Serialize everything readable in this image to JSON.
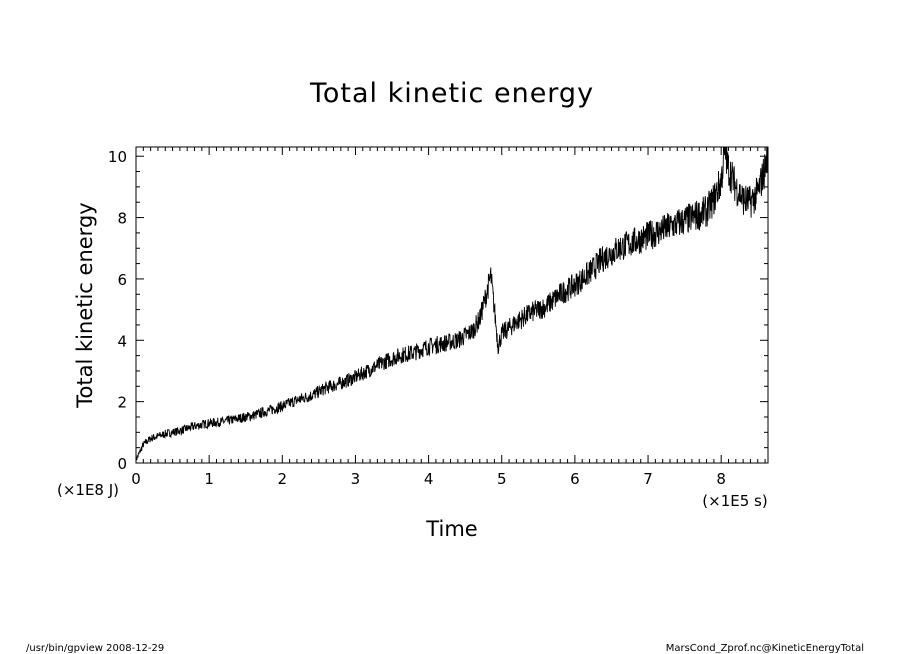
{
  "chart_data": {
    "type": "line",
    "title": "Total kinetic energy",
    "xlabel": "Time",
    "ylabel": "Total kinetic energy",
    "x_unit": "(×1E5 s)",
    "y_unit": "(×1E8 J)",
    "xlim": [
      0,
      8.64
    ],
    "ylim": [
      0,
      10.3
    ],
    "x_ticks": [
      0,
      1,
      2,
      3,
      4,
      5,
      6,
      7,
      8
    ],
    "x_tick_labels": [
      "0",
      "1",
      "2",
      "3",
      "4",
      "5",
      "6",
      "7",
      "8"
    ],
    "y_ticks": [
      0,
      2,
      4,
      6,
      8,
      10
    ],
    "y_tick_labels": [
      "0",
      "2",
      "4",
      "6",
      "8",
      "10"
    ],
    "grid": false,
    "legend": "none",
    "series": [
      {
        "color": "#000000",
        "x": [
          0,
          0.1,
          0.2,
          0.4,
          0.6,
          0.8,
          1.0,
          1.2,
          1.4,
          1.6,
          1.8,
          2.0,
          2.2,
          2.4,
          2.6,
          2.8,
          3.0,
          3.2,
          3.4,
          3.6,
          3.8,
          4.0,
          4.2,
          4.4,
          4.6,
          4.7,
          4.8,
          4.85,
          4.9,
          4.95,
          5.0,
          5.2,
          5.4,
          5.6,
          5.8,
          6.0,
          6.2,
          6.4,
          6.6,
          6.8,
          7.0,
          7.2,
          7.4,
          7.6,
          7.8,
          7.9,
          8.0,
          8.05,
          8.1,
          8.2,
          8.3,
          8.4,
          8.5,
          8.6,
          8.64
        ],
        "y": [
          0.1,
          0.6,
          0.8,
          0.95,
          1.05,
          1.2,
          1.3,
          1.35,
          1.45,
          1.55,
          1.7,
          1.85,
          2.05,
          2.2,
          2.45,
          2.6,
          2.8,
          3.05,
          3.3,
          3.5,
          3.6,
          3.8,
          3.9,
          4.0,
          4.3,
          4.7,
          5.6,
          6.1,
          5.0,
          3.8,
          4.2,
          4.6,
          4.9,
          5.1,
          5.5,
          5.8,
          6.2,
          6.7,
          7.0,
          7.2,
          7.4,
          7.6,
          7.8,
          8.0,
          8.2,
          8.6,
          9.2,
          10.2,
          9.6,
          9.0,
          8.6,
          8.5,
          8.8,
          9.6,
          10.2
        ]
      }
    ]
  },
  "footer": {
    "left": "/usr/bin/gpview   2008-12-29",
    "right": "MarsCond_Zprof.nc@KineticEnergyTotal"
  }
}
